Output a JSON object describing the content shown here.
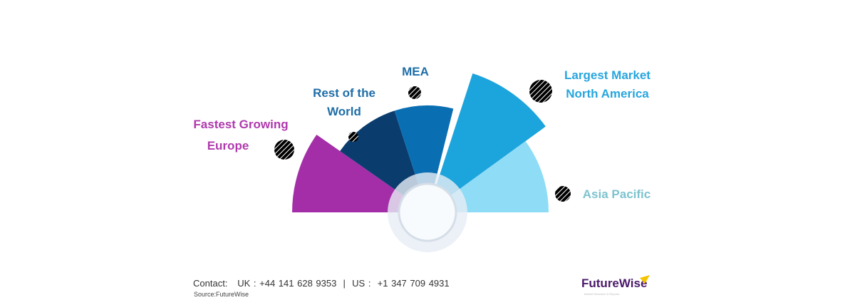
{
  "regions": [
    {
      "label": "Fastest Growing Europe",
      "line1": "Fastest Growing",
      "line2": "Europe",
      "color": "#a42ea8"
    },
    {
      "label": "Rest of the World",
      "line1": "Rest of the",
      "line2": "World",
      "color": "#0b3c6e"
    },
    {
      "label": "MEA",
      "line1": "MEA",
      "line2": "",
      "color": "#0a6fb2"
    },
    {
      "label": "Largest Market North America",
      "line1": "Largest Market",
      "line2": "North America",
      "color": "#1ca4dc"
    },
    {
      "label": "Asia Pacific",
      "line1": "Asia Pacific",
      "line2": "",
      "color": "#8fdcf6"
    }
  ],
  "label_colors": {
    "europe": "#b03aad",
    "row": "#1f6ea8",
    "mea": "#1f6ea8",
    "na": "#27a6de",
    "apac": "#7ec3cf"
  },
  "footer": {
    "contact": "Contact:   UK : +44 141 628 9353  |  US :  +1 347 709 4931",
    "source": "Source:FutureWise",
    "logo": "FutureWise",
    "logo_tagline": "Market Research & Reports"
  }
}
